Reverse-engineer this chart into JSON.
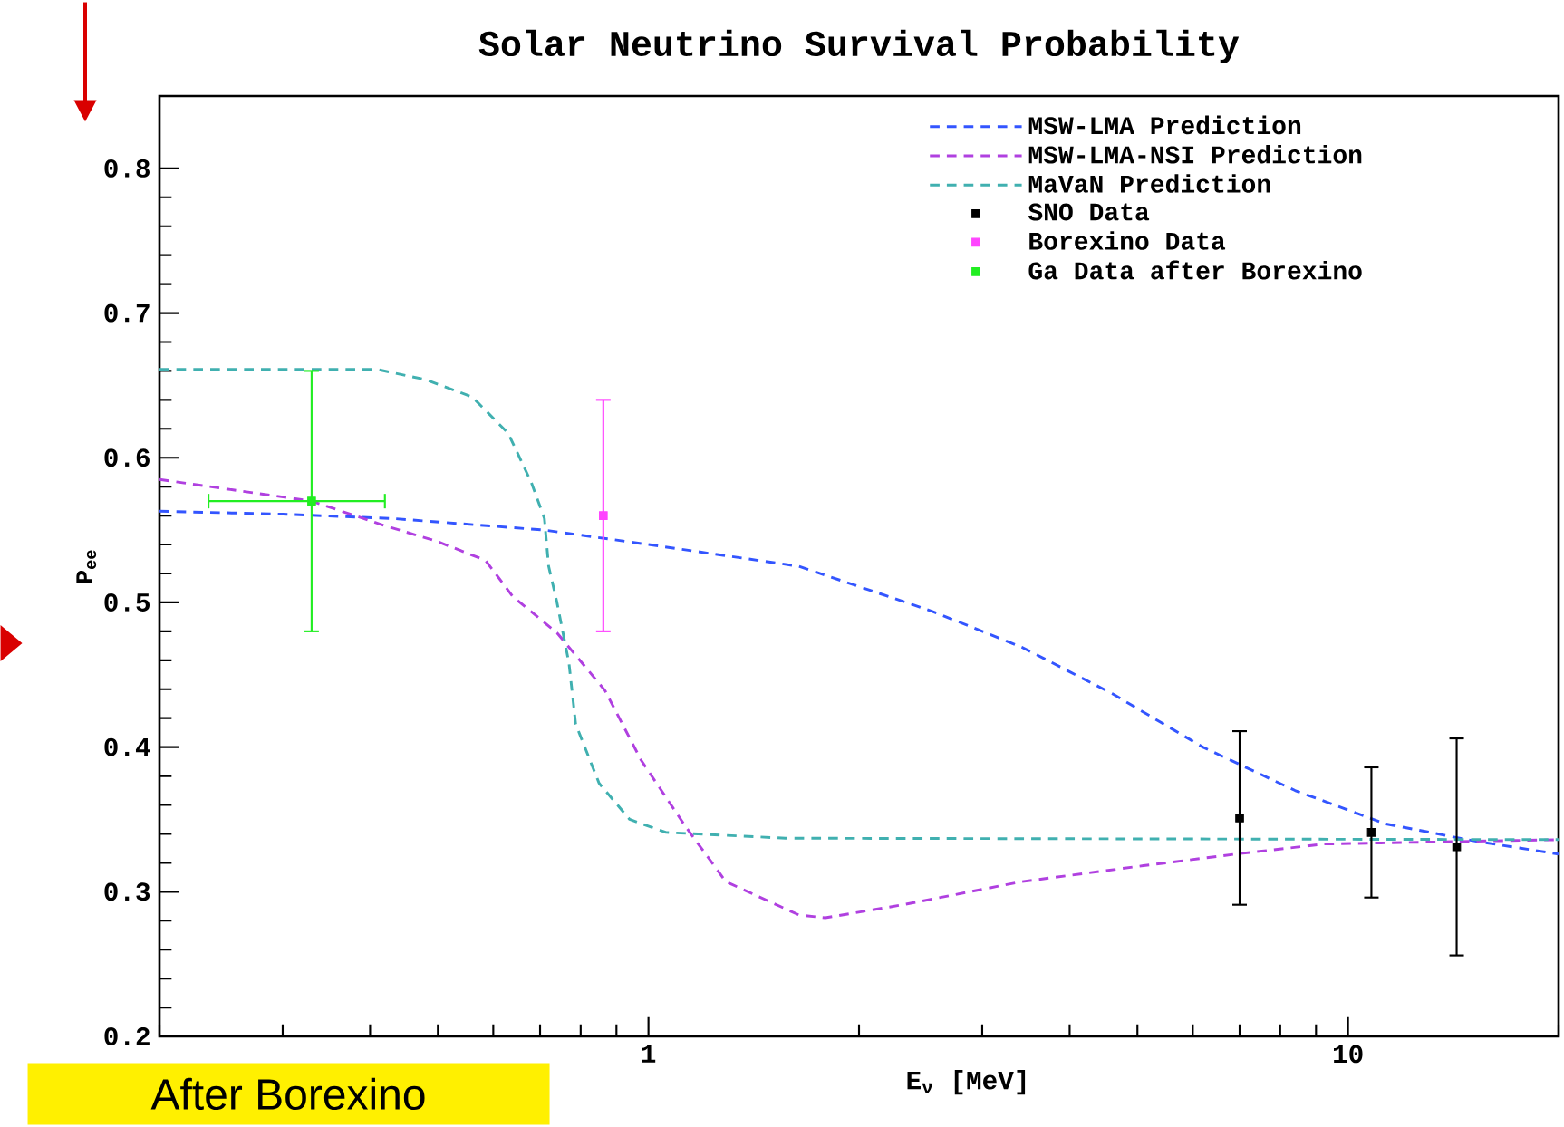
{
  "chart_data": {
    "type": "line",
    "title": "Solar Neutrino Survival Probability",
    "xlabel": "E$_{ν}$ [MeV]",
    "ylabel": "P$_{ee}$",
    "log": "x",
    "xlim": [
      0.2,
      20
    ],
    "ylim": [
      0.2,
      0.85
    ],
    "xticks": [
      {
        "value": 0.2,
        "label": null
      },
      {
        "value": 0.3,
        "label": null
      },
      {
        "value": 0.4,
        "label": null
      },
      {
        "value": 0.5,
        "label": null
      },
      {
        "value": 0.6,
        "label": null
      },
      {
        "value": 0.7,
        "label": null
      },
      {
        "value": 0.8,
        "label": null
      },
      {
        "value": 0.9,
        "label": null
      },
      1,
      {
        "value": 2,
        "label": null
      },
      {
        "value": 3,
        "label": null
      },
      {
        "value": 4,
        "label": null
      },
      {
        "value": 5,
        "label": null
      },
      {
        "value": 6,
        "label": null
      },
      {
        "value": 7,
        "label": null
      },
      {
        "value": 8,
        "label": null
      },
      {
        "value": 9,
        "label": null
      },
      10,
      {
        "value": 20,
        "label": null
      }
    ],
    "yticks": [
      0.2,
      0.3,
      0.4,
      0.5,
      0.6,
      0.7,
      0.8
    ],
    "legend": "top right",
    "annotations": [
      "After Borexino"
    ],
    "series": [
      {
        "name": "MSW-LMA Prediction",
        "color": "#3355ff",
        "line_style": "dashed",
        "marker": "none",
        "x": [
          0.2,
          0.3,
          0.43,
          0.71,
          1.0,
          1.64,
          2.54,
          3.42,
          4.6,
          6.2,
          8.4,
          11.3,
          15.2,
          20
        ],
        "values": [
          0.563,
          0.561,
          0.558,
          0.55,
          0.54,
          0.525,
          0.494,
          0.469,
          0.437,
          0.4,
          0.37,
          0.347,
          0.335,
          0.326
        ]
      },
      {
        "name": "MSW-LMA-NSI Prediction",
        "color": "#b040e0",
        "line_style": "dashed",
        "marker": "none",
        "x": [
          0.2,
          0.33,
          0.42,
          0.5,
          0.585,
          0.64,
          0.74,
          0.867,
          0.976,
          1.13,
          1.29,
          1.64,
          1.79,
          2.31,
          3.42,
          5.1,
          6.9,
          9.25,
          20
        ],
        "values": [
          0.585,
          0.57,
          0.553,
          0.542,
          0.529,
          0.504,
          0.479,
          0.439,
          0.391,
          0.345,
          0.307,
          0.284,
          0.282,
          0.291,
          0.307,
          0.318,
          0.326,
          0.333,
          0.336
        ]
      },
      {
        "name": "MaVaN Prediction",
        "color": "#40b0b0",
        "line_style": "dashed",
        "marker": "none",
        "x": [
          0.2,
          0.41,
          0.48,
          0.56,
          0.63,
          0.68,
          0.71,
          0.72,
          0.74,
          0.77,
          0.787,
          0.85,
          0.94,
          1.06,
          1.57,
          20
        ],
        "values": [
          0.661,
          0.661,
          0.654,
          0.642,
          0.617,
          0.583,
          0.558,
          0.525,
          0.5,
          0.458,
          0.416,
          0.375,
          0.35,
          0.341,
          0.337,
          0.336
        ]
      },
      {
        "name": "SNO Data",
        "type": "scatter",
        "color": "#000000",
        "marker": "square",
        "x": [
          7.0,
          10.8,
          14.3
        ],
        "values": [
          0.351,
          0.341,
          0.331
        ],
        "errors": [
          0.06,
          0.045,
          0.075
        ]
      },
      {
        "name": "Borexino Data",
        "type": "scatter",
        "color": "#ff44ff",
        "marker": "square",
        "x": [
          0.862
        ],
        "values": [
          0.56
        ],
        "errors": [
          0.08
        ]
      },
      {
        "name": "Ga Data after Borexino",
        "type": "scatter",
        "color": "#22ee22",
        "marker": "square",
        "x": [
          0.33
        ],
        "values": [
          0.57
        ],
        "errors": [
          0.09
        ],
        "xerrors": [
          [
            0.235,
            0.42
          ]
        ]
      }
    ]
  }
}
